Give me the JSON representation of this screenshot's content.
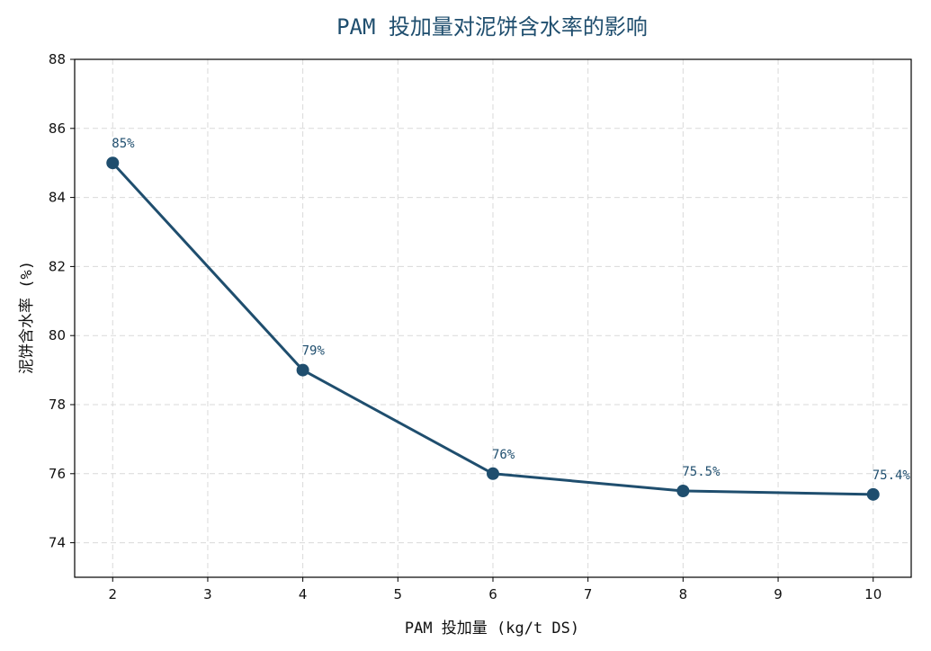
{
  "chart_data": {
    "type": "line",
    "title": "PAM 投加量对泥饼含水率的影响",
    "xlabel": "PAM 投加量 (kg/t DS)",
    "ylabel": "泥饼含水率 (%)",
    "xlim": [
      1.6,
      10.4
    ],
    "ylim": [
      73,
      88
    ],
    "x_ticks": [
      2,
      3,
      4,
      5,
      6,
      7,
      8,
      9,
      10
    ],
    "y_ticks": [
      74,
      76,
      78,
      80,
      82,
      84,
      86,
      88
    ],
    "grid": true,
    "series": [
      {
        "x": [
          2,
          4,
          6,
          8,
          10
        ],
        "y": [
          85,
          79,
          76,
          75.5,
          75.4
        ],
        "labels": [
          "85%",
          "79%",
          "76%",
          "75.5%",
          "75.4%"
        ]
      }
    ],
    "colors": {
      "line": "#1f4e6e",
      "title": "#1f4e6e",
      "grid": "#d9d9d9",
      "axis": "#000000"
    }
  }
}
